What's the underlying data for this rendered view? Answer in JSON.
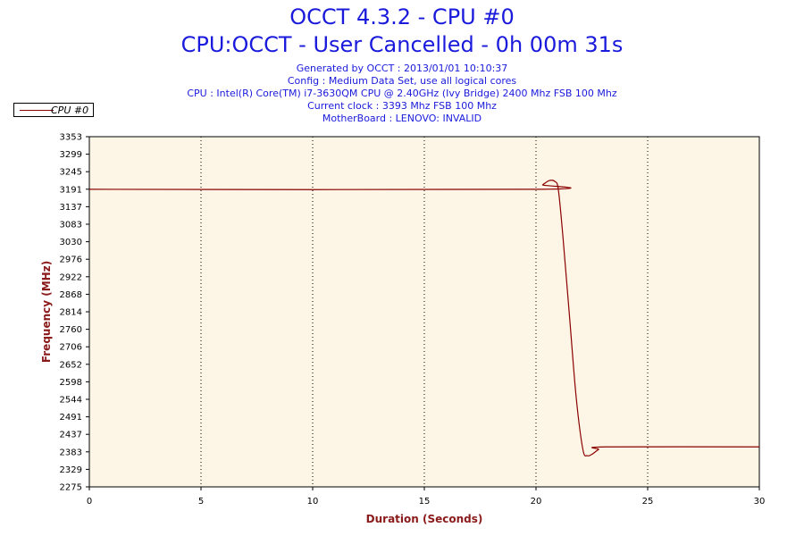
{
  "header": {
    "title": "OCCT 4.3.2 - CPU #0",
    "subtitle": "CPU:OCCT - User Cancelled - 0h 00m 31s",
    "info_lines": [
      "Generated by OCCT : 2013/01/01 10:10:37",
      "Config : Medium Data Set, use all logical cores",
      "CPU : Intel(R) Core(TM) i7-3630QM CPU @ 2.40GHz (Ivy Bridge) 2400 Mhz FSB 100 Mhz",
      "Current clock : 3393 Mhz FSB 100 Mhz",
      "MotherBoard : LENOVO: INVALID"
    ]
  },
  "legend": {
    "label": "CPU #0"
  },
  "colors": {
    "line": "#8b0000",
    "plot_bg": "#fdf6e6",
    "axis_label": "#8b1a1a",
    "title": "#1a1adc"
  },
  "chart_data": {
    "type": "line",
    "xlabel": "Duration (Seconds)",
    "ylabel": "Frequency (MHz)",
    "xlim": [
      0,
      30
    ],
    "ylim": [
      2275,
      3353
    ],
    "x_ticks": [
      0,
      5,
      10,
      15,
      20,
      25,
      30
    ],
    "y_ticks": [
      "3353",
      "3299",
      "3245",
      "3191",
      "3137",
      "3083",
      "3030",
      "2976",
      "2922",
      "2868",
      "2814",
      "2760",
      "2706",
      "2652",
      "2598",
      "2544",
      "2491",
      "2437",
      "2383",
      "2329",
      "2275"
    ],
    "grid": "vertical-dotted",
    "legend_position": "top-left",
    "series": [
      {
        "name": "CPU #0",
        "x": [
          0,
          20,
          20.3,
          20.6,
          20.85,
          21.0,
          21.2,
          21.5,
          21.8,
          22.1,
          22.3,
          22.5,
          22.8,
          23.1,
          30
        ],
        "y": [
          3191,
          3191,
          3205,
          3218,
          3215,
          3190,
          3050,
          2800,
          2550,
          2390,
          2371,
          2375,
          2390,
          2398,
          2398
        ]
      }
    ]
  }
}
